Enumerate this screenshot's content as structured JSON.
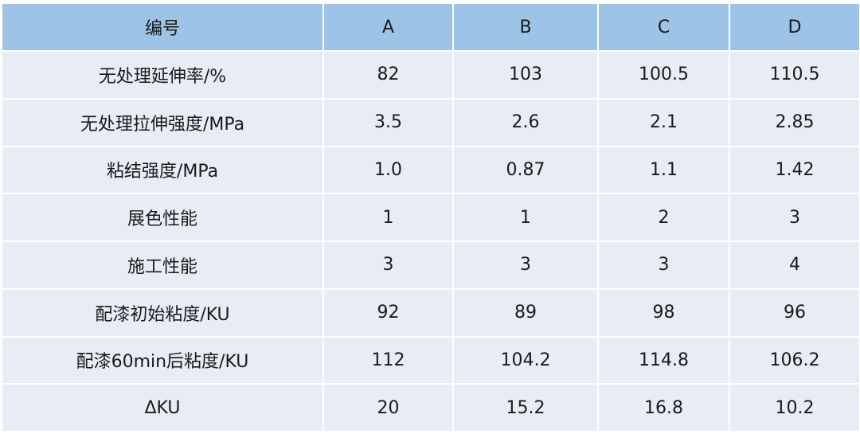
{
  "table": {
    "headers": [
      "编号",
      "A",
      "B",
      "C",
      "D"
    ],
    "rows": [
      [
        "无处理延伸率/%",
        "82",
        "103",
        "100.5",
        "110.5"
      ],
      [
        "无处理拉伸强度/MPa",
        "3.5",
        "2.6",
        "2.1",
        "2.85"
      ],
      [
        "粘结强度/MPa",
        "1.0",
        "0.87",
        "1.1",
        "1.42"
      ],
      [
        "展色性能",
        "1",
        "1",
        "2",
        "3"
      ],
      [
        "施工性能",
        "3",
        "3",
        "3",
        "4"
      ],
      [
        "配漆初始粘度/KU",
        "92",
        "89",
        "98",
        "96"
      ],
      [
        "配漆60min后粘度/KU",
        "112",
        "104.2",
        "114.8",
        "106.2"
      ],
      [
        "ΔKU",
        "20",
        "15.2",
        "16.8",
        "10.2"
      ]
    ]
  },
  "colors": {
    "header_bg": "#9dc3e6",
    "row_bg": "#e8ecf5",
    "text": "#1a1a1a"
  }
}
